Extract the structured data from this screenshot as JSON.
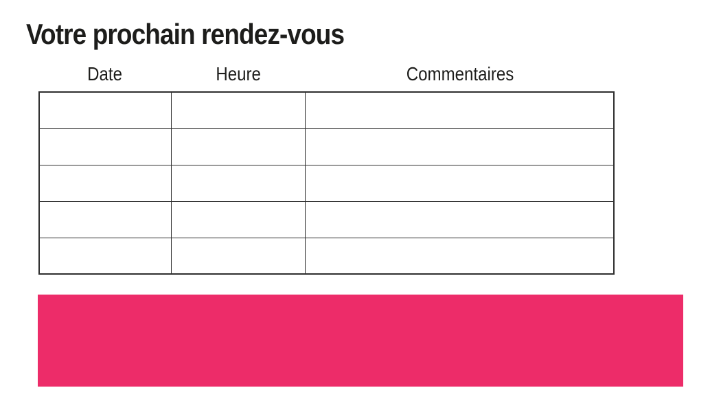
{
  "page": {
    "title": "Votre prochain rendez-vous",
    "background_color": "#ffffff",
    "text_color": "#1d1d1b"
  },
  "table": {
    "columns": [
      {
        "label": "Date"
      },
      {
        "label": "Heure"
      },
      {
        "label": "Commentaires"
      }
    ],
    "rows": [
      [
        "",
        "",
        ""
      ],
      [
        "",
        "",
        ""
      ],
      [
        "",
        "",
        ""
      ],
      [
        "",
        "",
        ""
      ],
      [
        "",
        "",
        ""
      ]
    ],
    "border_color": "#2e2e2e"
  },
  "banner": {
    "color": "#ed2c69"
  }
}
